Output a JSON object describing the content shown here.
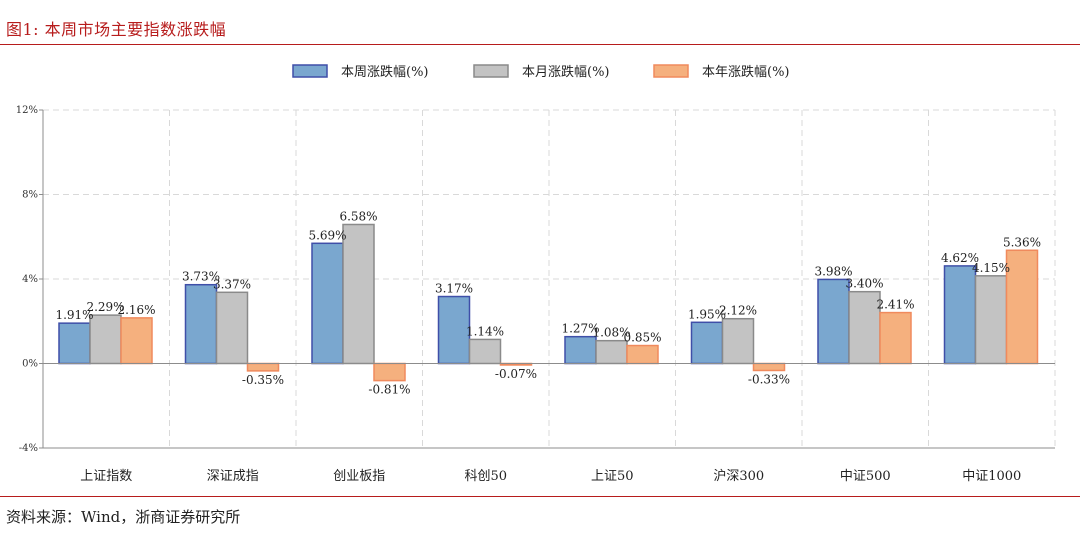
{
  "figure_title": "图1:  本周市场主要指数涨跌幅",
  "source": "资料来源：Wind，浙商证券研究所",
  "colors": {
    "title_red": "#b71c1c",
    "week_fill": "#7aa7cf",
    "week_stroke": "#3f4fa8",
    "month_fill": "#c3c3c3",
    "month_stroke": "#8a8a8a",
    "year_fill": "#f5b07e",
    "year_stroke": "#f08a5d"
  },
  "chart_data": {
    "type": "bar",
    "categories": [
      "上证指数",
      "深证成指",
      "创业板指",
      "科创50",
      "上证50",
      "沪深300",
      "中证500",
      "中证1000"
    ],
    "series": [
      {
        "name": "本周涨跌幅(%)",
        "values": [
          1.91,
          3.73,
          5.69,
          3.17,
          1.27,
          1.95,
          3.98,
          4.62
        ],
        "labels": [
          "1.91%",
          "3.73%",
          "5.69%",
          "3.17%",
          "1.27%",
          "1.95%",
          "3.98%",
          "4.62%"
        ]
      },
      {
        "name": "本月涨跌幅(%)",
        "values": [
          2.29,
          3.37,
          6.58,
          1.14,
          1.08,
          2.12,
          3.4,
          4.15
        ],
        "labels": [
          "2.29%",
          "3.37%",
          "6.58%",
          "1.14%",
          "1.08%",
          "2.12%",
          "3.40%",
          "4.15%"
        ]
      },
      {
        "name": "本年涨跌幅(%)",
        "values": [
          2.16,
          -0.35,
          -0.81,
          -0.07,
          0.85,
          -0.33,
          2.41,
          5.36
        ],
        "labels": [
          "2.16%",
          "-0.35%",
          "-0.81%",
          "-0.07%",
          "0.85%",
          "-0.33%",
          "2.41%",
          "5.36%"
        ]
      }
    ],
    "ylim": [
      -4,
      12
    ],
    "yticks": [
      -4,
      0,
      4,
      8,
      12
    ],
    "ytick_labels": [
      "-4%",
      "0%",
      "4%",
      "8%",
      "12%"
    ],
    "legend_position": "top-center",
    "grid": "dashed"
  }
}
